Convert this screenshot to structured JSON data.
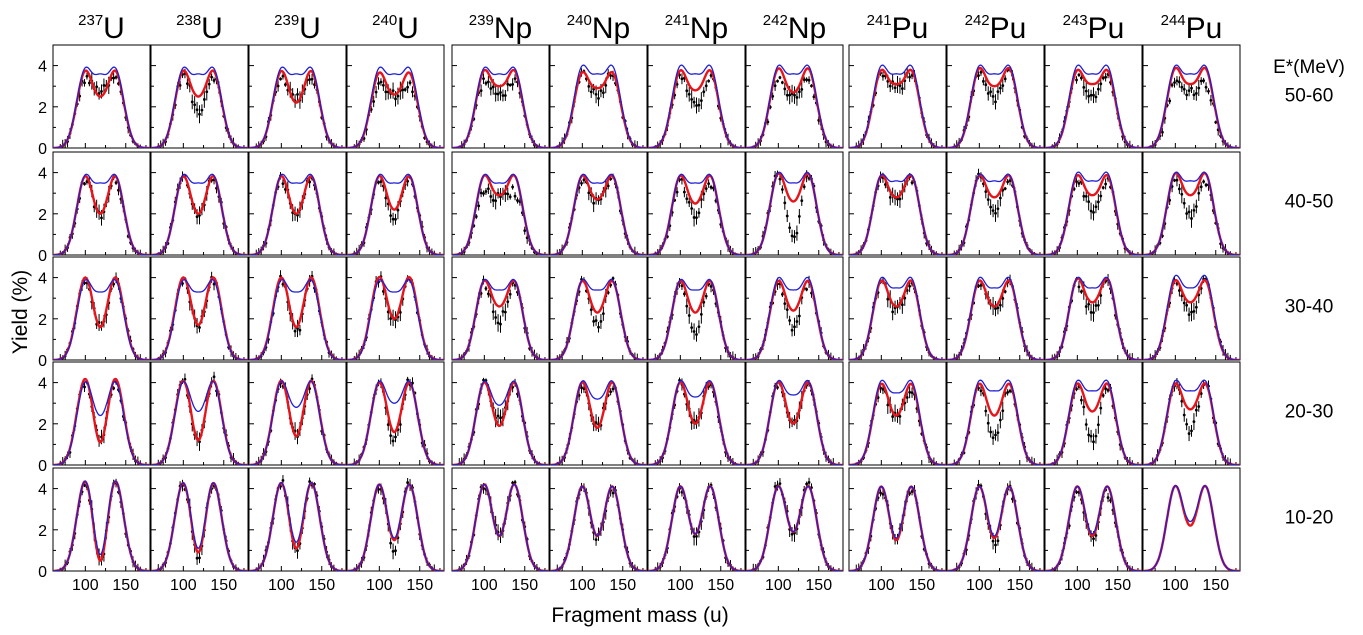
{
  "chart_data": {
    "type": "line",
    "xlabel": "Fragment mass (u)",
    "ylabel": "Yield (%)",
    "xlim": [
      60,
      180
    ],
    "ylim": [
      0,
      5
    ],
    "x_ticks": [
      100,
      150
    ],
    "y_ticks": [
      0,
      2,
      4
    ],
    "energy_header": "E*(MeV)",
    "energy_ranges": [
      "50-60",
      "40-50",
      "30-40",
      "20-30",
      "10-20"
    ],
    "nuclei": [
      {
        "mass": "237",
        "symbol": "U"
      },
      {
        "mass": "238",
        "symbol": "U"
      },
      {
        "mass": "239",
        "symbol": "U"
      },
      {
        "mass": "240",
        "symbol": "U"
      },
      {
        "mass": "239",
        "symbol": "Np"
      },
      {
        "mass": "240",
        "symbol": "Np"
      },
      {
        "mass": "241",
        "symbol": "Np"
      },
      {
        "mass": "242",
        "symbol": "Np"
      },
      {
        "mass": "241",
        "symbol": "Pu"
      },
      {
        "mass": "242",
        "symbol": "Pu"
      },
      {
        "mass": "243",
        "symbol": "Pu"
      },
      {
        "mass": "244",
        "symbol": "Pu"
      }
    ],
    "series_colors": {
      "red": "#e8141b",
      "blue": "#1f1fd6",
      "data": "#000000"
    },
    "peak_height": {
      "red": [
        [
          3.7,
          3.7,
          3.7,
          3.6,
          3.7,
          3.6,
          3.7,
          3.8,
          3.7,
          3.8,
          3.7,
          3.8
        ],
        [
          3.8,
          3.8,
          3.8,
          3.8,
          3.8,
          3.8,
          3.8,
          3.9,
          3.8,
          3.8,
          3.8,
          3.9
        ],
        [
          4.0,
          4.0,
          4.0,
          4.0,
          3.8,
          3.8,
          3.8,
          3.8,
          3.8,
          3.8,
          3.9,
          3.8
        ],
        [
          4.2,
          4.1,
          4.1,
          4.0,
          4.0,
          4.0,
          4.0,
          4.0,
          3.9,
          3.9,
          3.9,
          3.9
        ],
        [
          4.4,
          4.3,
          4.3,
          4.2,
          4.2,
          4.1,
          4.1,
          4.1,
          4.1,
          4.1,
          4.1,
          4.1
        ]
      ],
      "blue": [
        [
          3.8,
          3.8,
          3.8,
          3.8,
          3.8,
          3.9,
          3.9,
          3.9,
          3.9,
          3.9,
          3.9,
          3.9
        ],
        [
          3.8,
          3.8,
          3.8,
          3.8,
          3.8,
          3.8,
          3.8,
          3.9,
          3.8,
          3.8,
          3.9,
          3.9
        ],
        [
          3.8,
          3.8,
          3.8,
          3.8,
          3.8,
          3.8,
          3.8,
          3.9,
          3.9,
          3.9,
          3.9,
          4.0
        ],
        [
          4.0,
          4.0,
          4.0,
          4.0,
          4.0,
          4.0,
          4.0,
          4.0,
          4.0,
          4.0,
          4.0,
          4.0
        ],
        [
          4.4,
          4.3,
          4.3,
          4.2,
          4.2,
          4.1,
          4.1,
          4.1,
          4.1,
          4.1,
          4.1,
          4.1
        ]
      ]
    },
    "valley_height": {
      "red": [
        [
          2.5,
          2.5,
          2.2,
          2.6,
          3.0,
          2.9,
          2.8,
          2.7,
          3.1,
          3.0,
          3.1,
          3.1
        ],
        [
          2.0,
          2.0,
          2.0,
          2.2,
          2.9,
          2.7,
          2.5,
          2.6,
          2.8,
          2.8,
          2.9,
          2.9
        ],
        [
          1.6,
          1.7,
          1.6,
          2.0,
          2.6,
          2.3,
          2.3,
          2.4,
          2.6,
          2.6,
          2.8,
          2.8
        ],
        [
          1.1,
          1.2,
          1.4,
          1.6,
          1.9,
          1.8,
          2.0,
          2.0,
          2.4,
          2.4,
          2.6,
          2.7
        ],
        [
          0.5,
          0.9,
          1.1,
          1.5,
          1.7,
          1.7,
          1.8,
          1.9,
          1.5,
          1.6,
          1.7,
          2.2
        ]
      ],
      "blue": [
        [
          3.6,
          3.6,
          3.6,
          3.6,
          3.6,
          3.6,
          3.6,
          3.6,
          3.6,
          3.6,
          3.6,
          3.6
        ],
        [
          3.5,
          3.5,
          3.5,
          3.5,
          3.5,
          3.5,
          3.5,
          3.5,
          3.6,
          3.6,
          3.6,
          3.6
        ],
        [
          3.3,
          3.3,
          3.3,
          3.3,
          3.4,
          3.4,
          3.4,
          3.4,
          3.5,
          3.5,
          3.5,
          3.5
        ],
        [
          2.4,
          2.6,
          2.8,
          3.0,
          2.9,
          3.2,
          3.3,
          3.4,
          3.5,
          3.6,
          3.6,
          3.6
        ],
        [
          0.8,
          1.1,
          1.4,
          1.6,
          1.7,
          1.7,
          1.8,
          1.9,
          1.6,
          1.7,
          1.8,
          2.4
        ]
      ]
    },
    "data_peak_height": [
      [
        3.3,
        3.5,
        3.4,
        3.0,
        3.2,
        3.6,
        3.4,
        3.2,
        3.5,
        3.6,
        3.5,
        3.1
      ],
      [
        3.6,
        3.7,
        3.7,
        3.7,
        3.0,
        3.6,
        3.5,
        3.9,
        3.6,
        3.7,
        3.6,
        3.5
      ],
      [
        3.9,
        3.9,
        3.9,
        3.9,
        3.7,
        3.8,
        3.7,
        3.7,
        3.7,
        3.7,
        3.7,
        3.7
      ],
      [
        4.0,
        4.1,
        4.0,
        4.1,
        3.9,
        3.8,
        3.9,
        3.9,
        3.7,
        3.8,
        3.8,
        3.9
      ],
      [
        4.3,
        4.3,
        4.3,
        4.2,
        4.2,
        4.0,
        4.1,
        4.2,
        4.0,
        4.0,
        3.8,
        0
      ]
    ],
    "data_valley_height": [
      [
        2.8,
        1.8,
        2.4,
        2.6,
        2.6,
        2.6,
        2.0,
        2.6,
        3.0,
        2.4,
        2.6,
        2.8
      ],
      [
        1.9,
        1.8,
        1.9,
        1.9,
        2.8,
        2.6,
        2.0,
        0.8,
        2.7,
        2.1,
        2.2,
        1.9
      ],
      [
        1.6,
        1.6,
        1.3,
        1.8,
        1.9,
        1.7,
        1.4,
        1.6,
        2.4,
        2.4,
        2.4,
        2.3
      ],
      [
        1.1,
        1.1,
        1.4,
        1.1,
        2.2,
        1.9,
        2.0,
        2.0,
        2.3,
        1.2,
        1.2,
        1.7
      ],
      [
        0.5,
        0.7,
        1.1,
        1.1,
        1.7,
        1.7,
        1.7,
        1.9,
        1.5,
        1.3,
        1.6,
        0
      ]
    ]
  }
}
